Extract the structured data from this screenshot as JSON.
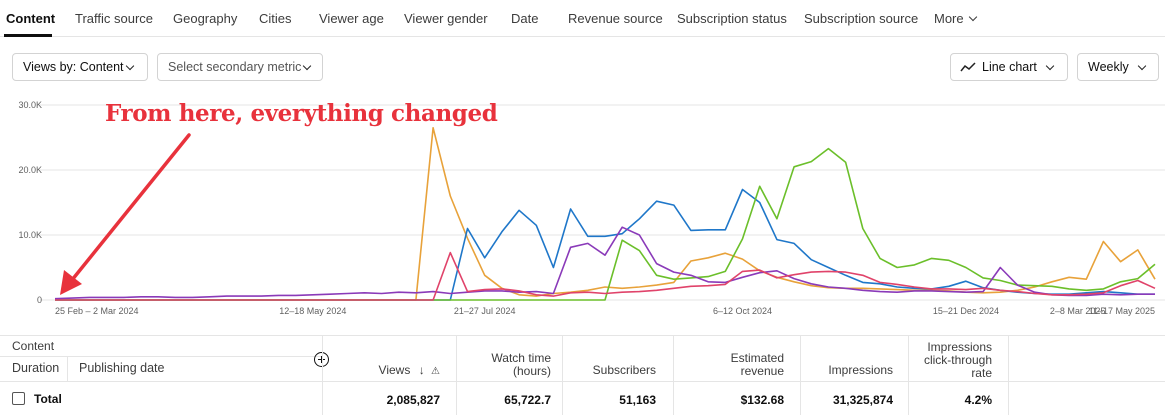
{
  "tabs": [
    "Content",
    "Traffic source",
    "Geography",
    "Cities",
    "Viewer age",
    "Viewer gender",
    "Date",
    "Revenue source",
    "Subscription status",
    "Subscription source",
    "More"
  ],
  "controls": {
    "views_by": "Views by: Content",
    "secondary_metric": "Select secondary metric",
    "chart_type": "Line chart",
    "interval": "Weekly"
  },
  "annotation": "From here, everything changed",
  "chart_data": {
    "type": "line",
    "y_ticks": [
      "30.0K",
      "20.0K",
      "10.0K",
      "0"
    ],
    "x_ticks": [
      "25 Feb – 2 Mar 2024",
      "12–18 May 2024",
      "21–27 Jul 2024",
      "6–12 Oct 2024",
      "15–21 Dec 2024",
      "2–8 Mar 2025",
      "11–17 May 2025"
    ],
    "ylim": [
      0,
      30000
    ],
    "n_weeks": 65,
    "colors": {
      "blue": "#1f77c9",
      "orange": "#e8a23a",
      "green": "#6bbf2a",
      "purple": "#8a3ab9",
      "red": "#e0436a"
    },
    "series": [
      {
        "color": "#e8a23a",
        "values": [
          0,
          0,
          0,
          0,
          0,
          0,
          0,
          0,
          0,
          0,
          0,
          0,
          0,
          0,
          0,
          0,
          0,
          0,
          0,
          0,
          0,
          0,
          26500,
          16000,
          9500,
          3800,
          1800,
          800,
          600,
          1000,
          1200,
          1500,
          2000,
          1800,
          2000,
          2300,
          2700,
          6000,
          6500,
          7200,
          6300,
          4500,
          3500,
          2800,
          2200,
          1900,
          1800,
          1800,
          1700,
          1600,
          1500,
          1500,
          1400,
          1200,
          1100,
          1200,
          1500,
          2000,
          2800,
          3500,
          3200,
          9000,
          5900,
          7700,
          3200
        ]
      },
      {
        "color": "#1f77c9",
        "values": [
          0,
          0,
          0,
          0,
          0,
          0,
          0,
          0,
          0,
          0,
          0,
          0,
          0,
          0,
          0,
          0,
          0,
          0,
          0,
          0,
          0,
          0,
          0,
          0,
          11000,
          6500,
          10500,
          13800,
          11500,
          5000,
          14000,
          9800,
          9800,
          10200,
          12500,
          15200,
          14600,
          10700,
          10800,
          10800,
          17000,
          15000,
          9300,
          8700,
          6200,
          5000,
          3800,
          2700,
          2500,
          2000,
          1800,
          1700,
          2100,
          2900,
          1900,
          1500,
          1200,
          1000,
          900,
          900,
          1100,
          1300,
          1100,
          900,
          900
        ]
      },
      {
        "color": "#6bbf2a",
        "values": [
          0,
          0,
          0,
          0,
          0,
          0,
          0,
          0,
          0,
          0,
          0,
          0,
          0,
          0,
          0,
          0,
          0,
          0,
          0,
          0,
          0,
          0,
          0,
          0,
          0,
          0,
          0,
          0,
          0,
          0,
          0,
          0,
          0,
          9200,
          7600,
          3800,
          3200,
          3400,
          3600,
          4400,
          9400,
          17500,
          12500,
          20500,
          21300,
          23300,
          21200,
          11000,
          6400,
          5000,
          5400,
          6400,
          6100,
          5000,
          3400,
          3000,
          2300,
          2200,
          2100,
          1700,
          1500,
          1700,
          2800,
          3300,
          5500
        ]
      },
      {
        "color": "#8a3ab9",
        "values": [
          200,
          300,
          400,
          400,
          400,
          500,
          500,
          400,
          400,
          500,
          600,
          600,
          600,
          700,
          700,
          800,
          900,
          1000,
          1100,
          1000,
          1200,
          1100,
          1300,
          1000,
          1200,
          1400,
          1400,
          1200,
          1300,
          1000,
          8100,
          8700,
          6900,
          11200,
          10000,
          5600,
          4300,
          3800,
          2800,
          2700,
          3500,
          4200,
          4500,
          3300,
          2500,
          2000,
          1800,
          1500,
          1300,
          1200,
          1400,
          1400,
          1300,
          1200,
          1300,
          5000,
          2300,
          1200,
          800,
          700,
          700,
          900,
          800,
          900,
          900
        ]
      },
      {
        "color": "#e0436a",
        "values": [
          0,
          0,
          0,
          0,
          0,
          0,
          0,
          0,
          0,
          0,
          0,
          0,
          0,
          0,
          0,
          0,
          0,
          0,
          0,
          0,
          0,
          0,
          0,
          7300,
          1300,
          1600,
          1700,
          1400,
          800,
          600,
          1100,
          1200,
          1000,
          1200,
          1300,
          1500,
          1800,
          2100,
          2200,
          2400,
          4400,
          4600,
          3400,
          3900,
          4300,
          4400,
          4300,
          3800,
          2700,
          2400,
          2000,
          1700,
          1700,
          1600,
          1800,
          1500,
          1300,
          1000,
          800,
          800,
          900,
          1100,
          2200,
          3000,
          1800
        ]
      }
    ]
  },
  "table": {
    "group_label": "Content",
    "col_duration": "Duration",
    "col_publishing": "Publishing date",
    "columns": [
      {
        "label": "Views",
        "total": "2,085,827"
      },
      {
        "label": "Watch time (hours)",
        "total": "65,722.7"
      },
      {
        "label": "Subscribers",
        "total": "51,163"
      },
      {
        "label": "Estimated revenue",
        "total": "$132.68"
      },
      {
        "label": "Impressions",
        "total": "31,325,874"
      },
      {
        "label": "Impressions click-through rate",
        "total": "4.2%"
      }
    ],
    "total_label": "Total"
  }
}
